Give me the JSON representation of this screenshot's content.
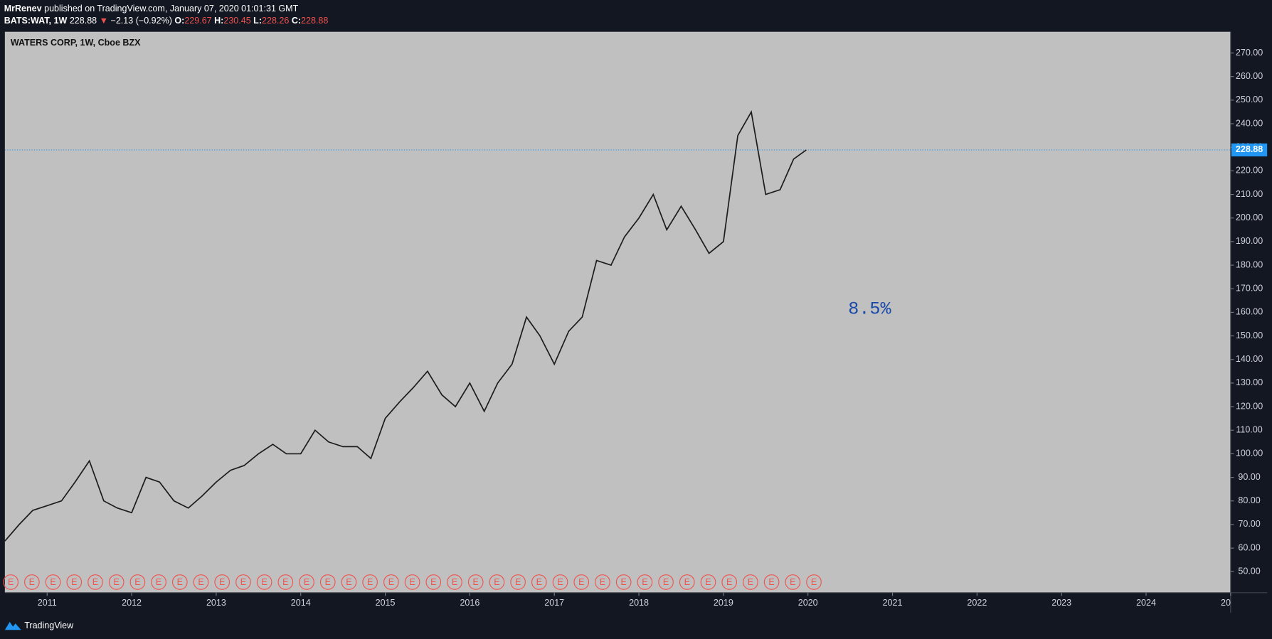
{
  "header": {
    "author": "MrRenev",
    "published": "published on TradingView.com, January 07, 2020 01:01:31 GMT",
    "symbol": "BATS:WAT, 1W",
    "last": "228.88",
    "arrow": "▼",
    "change": "−2.13 (−0.92%)",
    "ohlc": [
      {
        "label": "O:",
        "value": "229.67"
      },
      {
        "label": "H:",
        "value": "230.45"
      },
      {
        "label": "L:",
        "value": "228.26"
      },
      {
        "label": "C:",
        "value": "228.88"
      }
    ]
  },
  "footer": "TradingView",
  "chart_data": {
    "type": "line",
    "title": "WATERS CORP, 1W, Cboe BZX",
    "annotation": "8.5%",
    "x": [
      2010.5,
      2010.67,
      2010.83,
      2011.0,
      2011.17,
      2011.33,
      2011.5,
      2011.67,
      2011.83,
      2012.0,
      2012.17,
      2012.33,
      2012.5,
      2012.67,
      2012.83,
      2013.0,
      2013.17,
      2013.33,
      2013.5,
      2013.67,
      2013.83,
      2014.0,
      2014.17,
      2014.33,
      2014.5,
      2014.67,
      2014.83,
      2015.0,
      2015.17,
      2015.33,
      2015.5,
      2015.67,
      2015.83,
      2016.0,
      2016.17,
      2016.33,
      2016.5,
      2016.67,
      2016.83,
      2017.0,
      2017.17,
      2017.33,
      2017.5,
      2017.67,
      2017.83,
      2018.0,
      2018.17,
      2018.33,
      2018.5,
      2018.67,
      2018.83,
      2019.0,
      2019.17,
      2019.33,
      2019.5,
      2019.67,
      2019.83,
      2019.98
    ],
    "series": [
      {
        "name": "WAT",
        "color": "#1c1c1c",
        "values": [
          63,
          70,
          76,
          78,
          80,
          88,
          97,
          80,
          77,
          75,
          90,
          88,
          80,
          77,
          82,
          88,
          93,
          95,
          100,
          104,
          100,
          100,
          110,
          105,
          103,
          103,
          98,
          115,
          122,
          128,
          135,
          125,
          120,
          130,
          118,
          130,
          138,
          158,
          150,
          138,
          152,
          158,
          182,
          180,
          192,
          200,
          210,
          195,
          205,
          195,
          185,
          190,
          235,
          245,
          210,
          212,
          225,
          228.88
        ]
      }
    ],
    "price_line": 228.88,
    "earnings": {
      "label": "E",
      "x": [
        2010.57,
        2010.82,
        2011.07,
        2011.32,
        2011.57,
        2011.82,
        2012.07,
        2012.32,
        2012.57,
        2012.82,
        2013.07,
        2013.32,
        2013.57,
        2013.82,
        2014.07,
        2014.32,
        2014.57,
        2014.82,
        2015.07,
        2015.32,
        2015.57,
        2015.82,
        2016.07,
        2016.32,
        2016.57,
        2016.82,
        2017.07,
        2017.32,
        2017.57,
        2017.82,
        2018.07,
        2018.32,
        2018.57,
        2018.82,
        2019.07,
        2019.32,
        2019.57,
        2019.82,
        2020.07
      ]
    },
    "xlim": [
      2010.5,
      2025.0
    ],
    "xticks": [
      2011,
      2012,
      2013,
      2014,
      2015,
      2016,
      2017,
      2018,
      2019,
      2020,
      2021,
      2022,
      2023,
      2024,
      {
        "value": 2025,
        "label": "20"
      }
    ],
    "ylim": [
      41.1,
      279
    ],
    "yticks": [
      {
        "value": 50,
        "label": "50.00"
      },
      {
        "value": 60,
        "label": "60.00"
      },
      {
        "value": 70,
        "label": "70.00"
      },
      {
        "value": 80,
        "label": "80.00"
      },
      {
        "value": 90,
        "label": "90.00"
      },
      {
        "value": 100,
        "label": "100.00"
      },
      {
        "value": 110,
        "label": "110.00"
      },
      {
        "value": 120,
        "label": "120.00"
      },
      {
        "value": 130,
        "label": "130.00"
      },
      {
        "value": 140,
        "label": "140.00"
      },
      {
        "value": 150,
        "label": "150.00"
      },
      {
        "value": 160,
        "label": "160.00"
      },
      {
        "value": 170,
        "label": "170.00"
      },
      {
        "value": 180,
        "label": "180.00"
      },
      {
        "value": 190,
        "label": "190.00"
      },
      {
        "value": 200,
        "label": "200.00"
      },
      {
        "value": 210,
        "label": "210.00"
      },
      {
        "value": 220,
        "label": "220.00"
      },
      {
        "value": 230,
        "label": "230.00"
      },
      {
        "value": 240,
        "label": "240.00"
      },
      {
        "value": 250,
        "label": "250.00"
      },
      {
        "value": 260,
        "label": "260.00"
      },
      {
        "value": 270,
        "label": "270.00"
      }
    ]
  }
}
